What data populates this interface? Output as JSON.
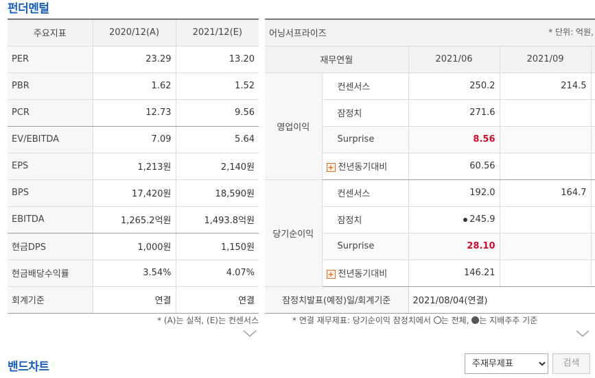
{
  "fundamentals": {
    "title": "펀더멘털",
    "headers": [
      "주요지표",
      "2020/12(A)",
      "2021/12(E)"
    ],
    "rows": [
      {
        "label": "PER",
        "a": "23.29",
        "e": "13.20"
      },
      {
        "label": "PBR",
        "a": "1.62",
        "e": "1.52"
      },
      {
        "label": "PCR",
        "a": "12.73",
        "e": "9.56"
      },
      {
        "label": "EV/EBITDA",
        "a": "7.09",
        "e": "5.64"
      },
      {
        "label": "EPS",
        "a": "1,213원",
        "e": "2,140원"
      },
      {
        "label": "BPS",
        "a": "17,420원",
        "e": "18,590원"
      },
      {
        "label": "EBITDA",
        "a": "1,265.2억원",
        "e": "1,493.8억원"
      },
      {
        "label": "현금DPS",
        "a": "1,000원",
        "e": "1,150원"
      },
      {
        "label": "현금배당수익률",
        "a": "3.54%",
        "e": "4.07%"
      },
      {
        "label": "회계기준",
        "a": "연결",
        "e": "연결"
      }
    ],
    "note": "* (A)는 실적, (E)는 컨센서스"
  },
  "earnings": {
    "title": "어닝서프라이즈",
    "unit": "* 단위: 억원, %",
    "col_label": "재무연월",
    "periods": [
      "2021/06",
      "2021/09"
    ],
    "groups": [
      {
        "name": "영업이익",
        "rows": [
          {
            "label": "컨센서스",
            "v1": "250.2",
            "v2": "214.5"
          },
          {
            "label": "잠정치",
            "v1": "271.6",
            "v2": ""
          },
          {
            "label": "Surprise",
            "v1": "8.56",
            "v2": ""
          },
          {
            "label": "전년동기대비",
            "v1": "60.56",
            "v2": ""
          }
        ]
      },
      {
        "name": "당기순이익",
        "rows": [
          {
            "label": "컨센서스",
            "v1": "192.0",
            "v2": "164.7"
          },
          {
            "label": "잠정치",
            "v1": "245.9",
            "v2": ""
          },
          {
            "label": "Surprise",
            "v1": "28.10",
            "v2": ""
          },
          {
            "label": "전년동기대비",
            "v1": "146.21",
            "v2": ""
          }
        ]
      }
    ],
    "footer_label": "잠정치발표(예정)일/회계기준",
    "footer_value": "2021/08/04(연결)",
    "note_prefix": "* 연결 재무제표: 당기순이익 잠정치에서 ",
    "note_mid": "는 전체, ",
    "note_suffix": "는 지배주주 기준"
  },
  "band_chart": {
    "title": "밴드차트",
    "select_value": "주재무제표",
    "search_label": "검색"
  },
  "colors": {
    "accent": "#1a5fb4",
    "surprise": "#c8102e",
    "plus_icon": "#e06b1f"
  }
}
